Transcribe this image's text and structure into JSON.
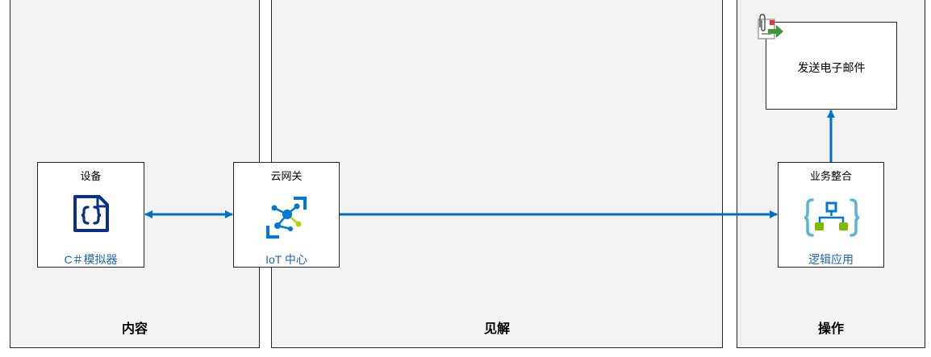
{
  "lanes": {
    "content": "内容",
    "insight": "见解",
    "action": "操作"
  },
  "nodes": {
    "device": {
      "title": "设备",
      "subtitle": "C＃模拟器",
      "icon": "csharp-file-icon"
    },
    "gateway": {
      "title": "云网关",
      "subtitle": "IoT 中心",
      "icon": "iot-hub-icon"
    },
    "integration": {
      "title": "业务整合",
      "subtitle": "逻辑应用",
      "icon": "logic-apps-icon"
    },
    "email": {
      "label": "发送电子邮件",
      "icon": "email-attachment-icon"
    }
  },
  "colors": {
    "arrow": "#0070c0",
    "link_text": "#1e64b4",
    "lane_fill": "#f2f2f2",
    "csharp_icon": "#0d2f8c",
    "iot_icon": "#0078d4",
    "iot_accent": "#b4d40a",
    "logic_brace": "#59b4d9",
    "logic_node": "#7fba00"
  }
}
